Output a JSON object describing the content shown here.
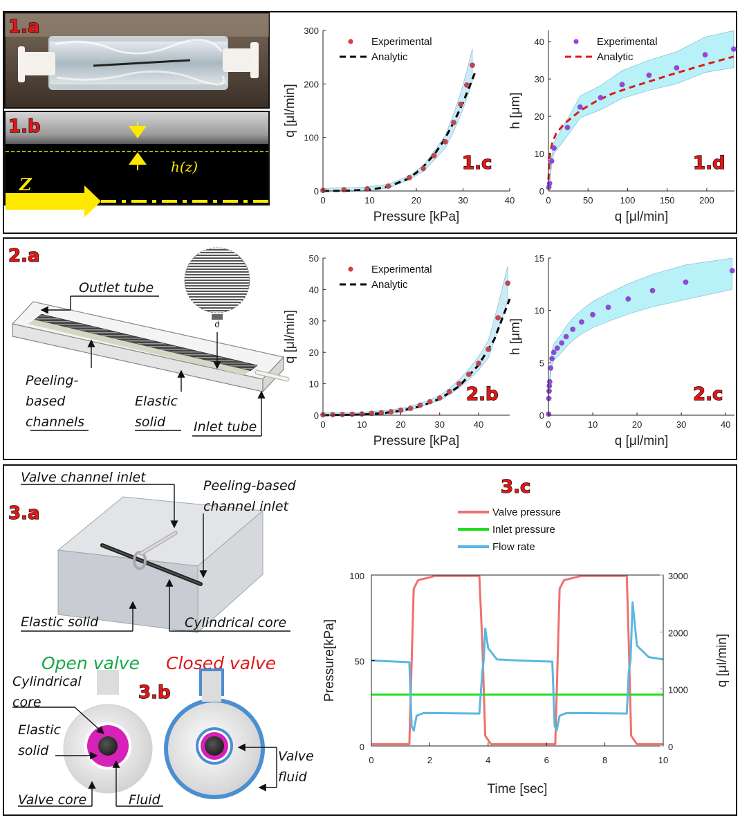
{
  "panel_labels": {
    "p1a": "1.a",
    "p1b": "1.b",
    "p1c": "1.c",
    "p1d": "1.d",
    "p2a": "2.a",
    "p2b": "2.b",
    "p2c": "2.c",
    "p3a": "3.a",
    "p3b": "3.b",
    "p3c": "3.c"
  },
  "fig1b": {
    "axis_label": "Z",
    "gap_label": "h(z)"
  },
  "fig2a": {
    "outlet_tube": "Outlet tube",
    "peeling_line1": "Peeling-",
    "peeling_line2": "based",
    "peeling_line3": "channels",
    "elastic_line1": "Elastic",
    "elastic_line2": "solid",
    "inlet_tube": "Inlet tube"
  },
  "fig3a": {
    "valve_channel_inlet": "Valve channel inlet",
    "peeling_inlet_line1": "Peeling-based",
    "peeling_inlet_line2": "channel inlet",
    "elastic_solid": "Elastic solid",
    "cylindrical_core": "Cylindrical core"
  },
  "fig3b": {
    "open_valve": "Open valve",
    "closed_valve": "Closed valve",
    "cyl_line1": "Cylindrical",
    "cyl_line2": "core",
    "el_line1": "Elastic",
    "el_line2": "solid",
    "valve_core": "Valve core",
    "fluid": "Fluid",
    "vf_line1": "Valve",
    "vf_line2": "fluid"
  },
  "colors": {
    "exp_red": "#d0404a",
    "exp_purple": "#9a3ff0",
    "analytic_black": "#000000",
    "analytic_red": "#e01818",
    "band_blue": "#a8d8ee",
    "band_cyan": "#7fe6f2",
    "valve_pressure": "#f07070",
    "inlet_pressure": "#22dd22",
    "flow_rate": "#5ab8e0",
    "open_valve_text": "#18a848",
    "closed_valve_text": "#e01818"
  },
  "chart_data": [
    {
      "id": "1c",
      "type": "scatter",
      "xlabel": "Pressure [kPa]",
      "ylabel": "q [μl/min]",
      "xlim": [
        0,
        40
      ],
      "ylim": [
        0,
        300
      ],
      "xticks": [
        0,
        10,
        20,
        30,
        40
      ],
      "yticks": [
        0,
        100,
        200,
        300
      ],
      "legend": [
        "Experimental",
        "Analytic"
      ],
      "legend_position": "top-left",
      "series": [
        {
          "name": "Experimental",
          "kind": "points",
          "x": [
            0,
            4.5,
            9.5,
            14,
            18.5,
            21.5,
            23.8,
            26.2,
            28,
            29.5,
            30.8,
            32
          ],
          "y": [
            1,
            2.5,
            4,
            9,
            25,
            42,
            66,
            92,
            128,
            162,
            198,
            235
          ]
        },
        {
          "name": "Analytic",
          "kind": "dashed",
          "x": [
            0,
            5,
            10,
            14,
            18,
            20,
            22,
            24,
            26,
            28,
            30,
            32.5
          ],
          "y": [
            0,
            0.5,
            2.5,
            8,
            22,
            34,
            50,
            70,
            96,
            128,
            165,
            220
          ]
        }
      ]
    },
    {
      "id": "1d",
      "type": "scatter",
      "xlabel": "q [μl/min]",
      "ylabel": "h [μm]",
      "xlim": [
        0,
        235
      ],
      "ylim": [
        0,
        43
      ],
      "xticks": [
        0,
        50,
        100,
        150,
        200
      ],
      "yticks": [
        0,
        10,
        20,
        30,
        40
      ],
      "legend": [
        "Experimental",
        "Analytic"
      ],
      "legend_position": "top-left",
      "series": [
        {
          "name": "Experimental",
          "kind": "points",
          "x": [
            0.5,
            1.5,
            4,
            7,
            24,
            40,
            66,
            93,
            127,
            162,
            198,
            234
          ],
          "y": [
            1,
            2,
            8,
            11.5,
            17,
            22.5,
            25,
            28.5,
            31,
            33,
            36.5,
            38
          ]
        },
        {
          "name": "Analytic",
          "kind": "dashed",
          "x": [
            0,
            2,
            5,
            10,
            20,
            40,
            60,
            80,
            100,
            130,
            160,
            200,
            234
          ],
          "y": [
            3,
            10,
            13,
            15.5,
            18,
            21.5,
            24,
            26,
            27.5,
            29.5,
            31.5,
            34,
            36
          ]
        }
      ]
    },
    {
      "id": "2b",
      "type": "scatter",
      "xlabel": "Pressure [kPa]",
      "ylabel": "q [μl/min]",
      "xlim": [
        0,
        48
      ],
      "ylim": [
        0,
        50
      ],
      "xticks": [
        0,
        10,
        20,
        30,
        40
      ],
      "yticks": [
        0,
        10,
        20,
        30,
        40,
        50
      ],
      "legend": [
        "Experimental",
        "Analytic"
      ],
      "legend_position": "top-left",
      "series": [
        {
          "name": "Experimental",
          "kind": "points",
          "x": [
            0,
            2.5,
            5,
            7.5,
            10,
            12.5,
            15,
            17.5,
            20,
            22.5,
            25,
            27.5,
            30,
            32.5,
            35,
            37.5,
            40,
            42.5,
            45,
            47.5
          ],
          "y": [
            0.1,
            0.15,
            0.2,
            0.3,
            0.4,
            0.6,
            0.8,
            1.1,
            1.6,
            2.2,
            3.2,
            4.3,
            5.5,
            7.5,
            10,
            13,
            16.5,
            21,
            31,
            42
          ]
        },
        {
          "name": "Analytic",
          "kind": "dashed",
          "x": [
            0,
            10,
            15,
            20,
            25,
            30,
            35,
            40,
            44,
            48
          ],
          "y": [
            0,
            0.2,
            0.6,
            1.4,
            2.8,
            5.2,
            9.2,
            16,
            24,
            37
          ]
        }
      ]
    },
    {
      "id": "2c",
      "type": "scatter",
      "xlabel": "q [μl/min]",
      "ylabel": "h [μm]",
      "xlim": [
        0,
        42
      ],
      "ylim": [
        0,
        15
      ],
      "xticks": [
        0,
        10,
        20,
        30,
        40
      ],
      "yticks": [
        0,
        5,
        10,
        15
      ],
      "series": [
        {
          "name": "Experimental",
          "kind": "points",
          "x": [
            0.05,
            0.1,
            0.15,
            0.2,
            0.3,
            0.5,
            0.8,
            1.2,
            2,
            3,
            4,
            5.5,
            7.5,
            10,
            13.5,
            18,
            23.5,
            31,
            41.5
          ],
          "y": [
            0.1,
            1.6,
            2.3,
            2.8,
            3.2,
            4.5,
            5.4,
            6.0,
            6.4,
            6.9,
            7.5,
            8.2,
            8.9,
            9.6,
            10.3,
            11.1,
            11.9,
            12.7,
            13.8
          ]
        }
      ]
    },
    {
      "id": "3c",
      "type": "line",
      "xlabel": "Time [sec]",
      "ylabel": "Pressure[kPa]",
      "ylabel_right": "q [μl/min]",
      "xlim": [
        0,
        10
      ],
      "ylim": [
        0,
        100
      ],
      "ylim_right": [
        0,
        3000
      ],
      "xticks": [
        0,
        2,
        4,
        6,
        8,
        10
      ],
      "yticks": [
        0,
        50,
        100
      ],
      "yticks_right": [
        0,
        1000,
        2000,
        3000
      ],
      "legend": [
        "Valve pressure",
        "Inlet pressure",
        "Flow rate"
      ],
      "legend_position": "top-center",
      "series": [
        {
          "name": "Valve pressure",
          "axis": "left",
          "x": [
            0,
            1.3,
            1.45,
            1.6,
            2.2,
            3.7,
            3.8,
            3.9,
            4.1,
            6.2,
            6.3,
            6.45,
            6.6,
            7.2,
            8.75,
            8.82,
            8.9,
            9.1,
            10
          ],
          "y": [
            1,
            1,
            92,
            97,
            99.5,
            99.5,
            60,
            6,
            1,
            1,
            1,
            92,
            97,
            99.5,
            99.5,
            60,
            6,
            1,
            1
          ]
        },
        {
          "name": "Inlet pressure",
          "axis": "left",
          "x": [
            0,
            10
          ],
          "y": [
            30,
            30
          ]
        },
        {
          "name": "Flow rate",
          "axis": "right",
          "x": [
            0,
            1.3,
            1.38,
            1.45,
            1.55,
            1.8,
            3.7,
            3.8,
            3.85,
            3.9,
            4.0,
            4.3,
            5.0,
            6.2,
            6.28,
            6.35,
            6.45,
            6.7,
            8.75,
            8.82,
            8.88,
            8.95,
            9.1,
            9.5,
            10
          ],
          "y": [
            1500,
            1470,
            350,
            270,
            530,
            580,
            570,
            1300,
            1520,
            2060,
            1720,
            1520,
            1500,
            1480,
            350,
            280,
            530,
            580,
            570,
            1300,
            1500,
            2520,
            1760,
            1560,
            1520
          ]
        }
      ]
    }
  ]
}
